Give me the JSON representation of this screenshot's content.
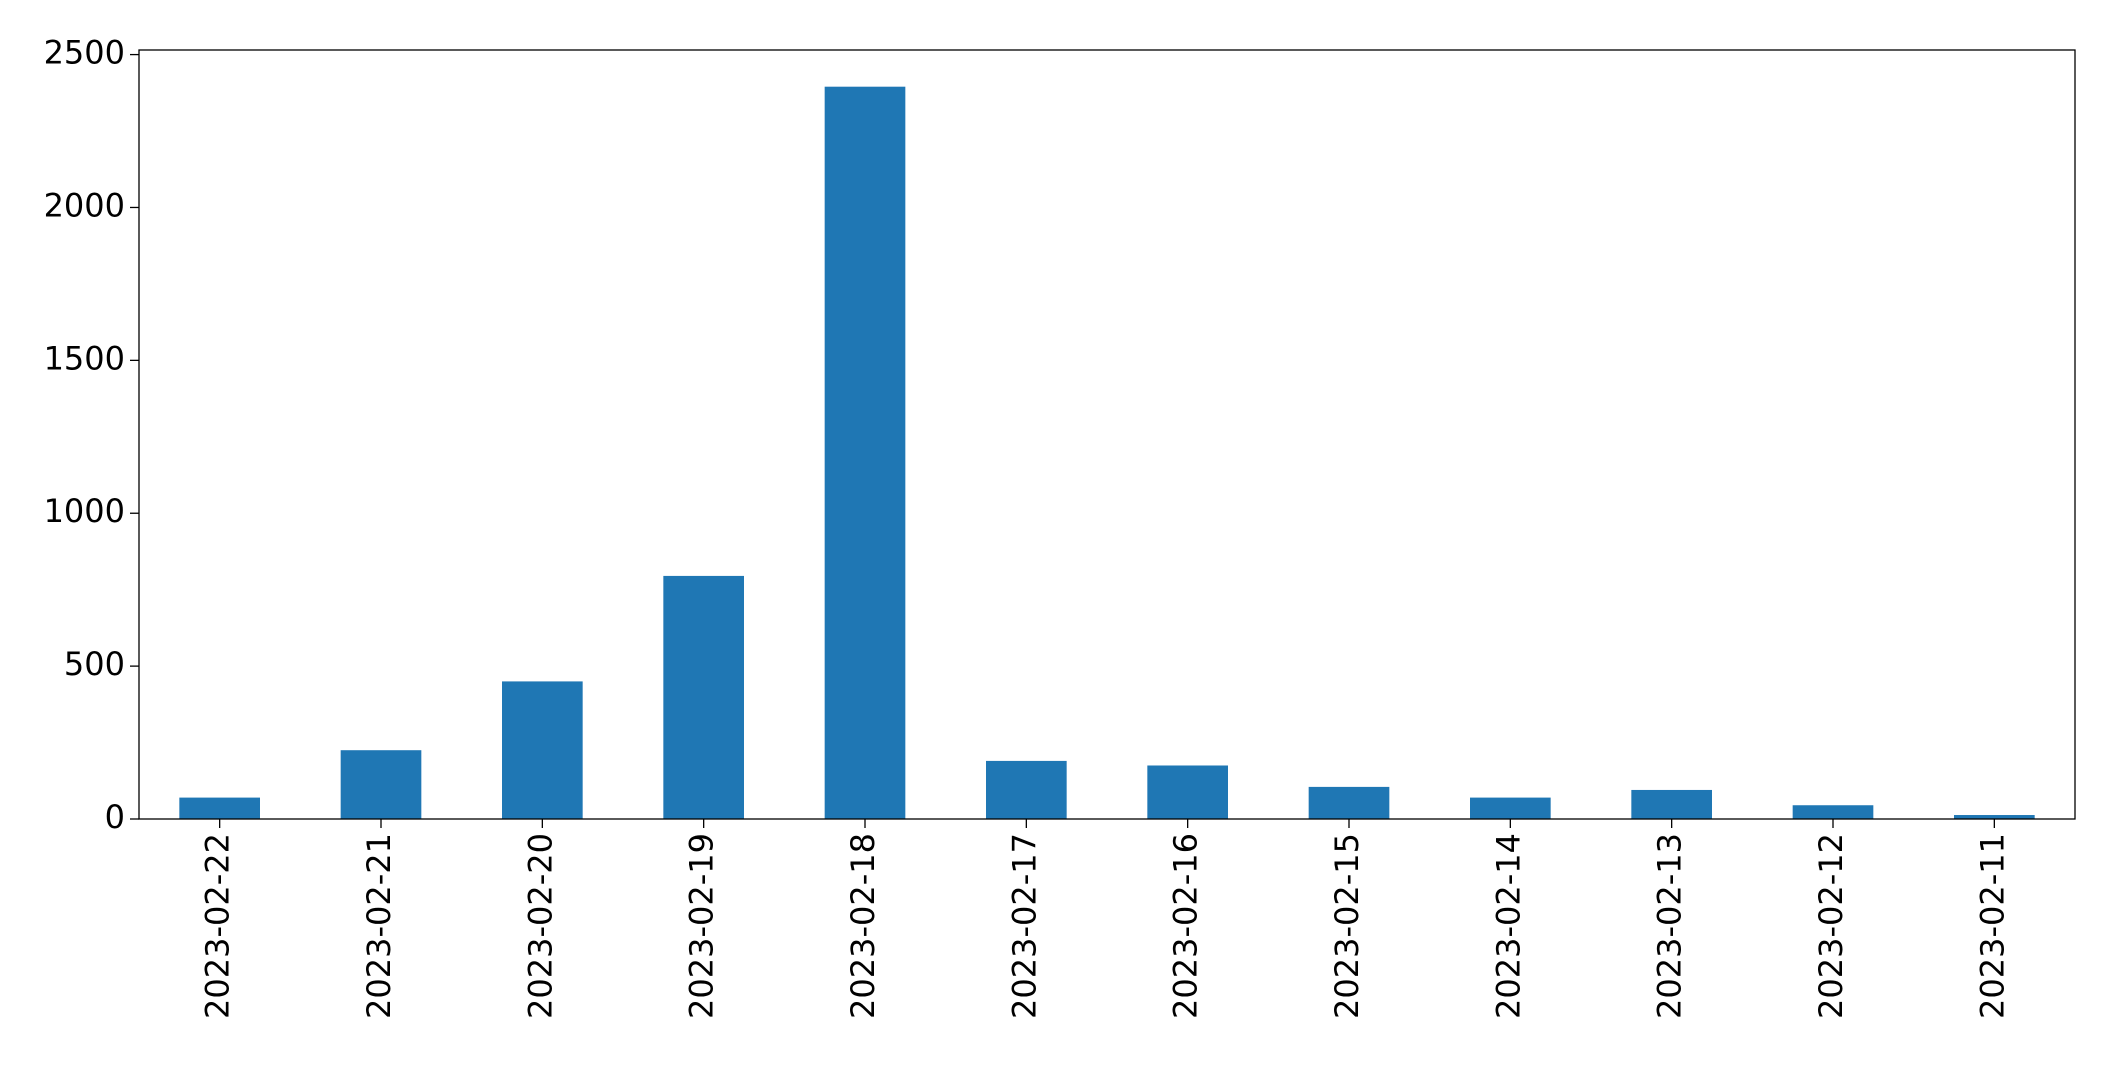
{
  "chart_data": {
    "type": "bar",
    "categories": [
      "2023-02-22",
      "2023-02-21",
      "2023-02-20",
      "2023-02-19",
      "2023-02-18",
      "2023-02-17",
      "2023-02-16",
      "2023-02-15",
      "2023-02-14",
      "2023-02-13",
      "2023-02-12",
      "2023-02-11"
    ],
    "values": [
      70,
      225,
      450,
      795,
      2395,
      190,
      175,
      105,
      70,
      95,
      45,
      13
    ],
    "color": "#1f77b4",
    "ylim": [
      0,
      2515
    ],
    "yticks": [
      0,
      500,
      1000,
      1500,
      2000,
      2500
    ],
    "grid": false
  }
}
